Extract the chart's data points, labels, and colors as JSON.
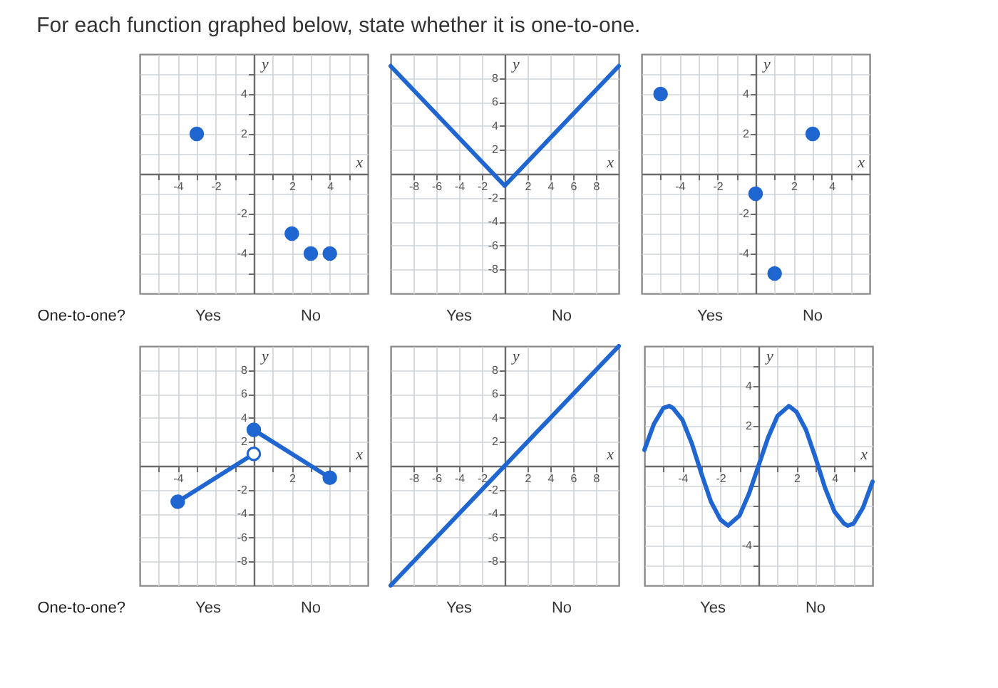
{
  "chart_data": [
    {
      "type": "scatter",
      "title": "For each function graphed below, state whether it is one-to-one.",
      "xlabel": "x",
      "ylabel": "y",
      "x": [
        -3,
        2,
        3,
        4
      ],
      "values": [
        2,
        -3,
        -4,
        -4
      ],
      "color": "#1f66d1",
      "marker": "circle",
      "xlim": [
        -6,
        6
      ],
      "ylim": [
        -6,
        6
      ],
      "xticks": [
        {
          "value": -5,
          "label": null
        },
        -4,
        {
          "value": -3,
          "label": null
        },
        -2,
        {
          "value": -1,
          "label": null
        },
        {
          "value": 1,
          "label": null
        },
        2,
        {
          "value": 3,
          "label": null
        },
        4,
        {
          "value": 5,
          "label": null
        }
      ],
      "yticks": [
        {
          "value": -5,
          "label": null
        },
        -4,
        {
          "value": -3,
          "label": null
        },
        -2,
        {
          "value": -1,
          "label": null
        },
        {
          "value": 1,
          "label": null
        },
        2,
        {
          "value": 3,
          "label": null
        },
        4,
        {
          "value": 5,
          "label": null
        }
      ],
      "grid": true,
      "annotations": [
        "One-to-one?",
        "Yes",
        "No"
      ]
    },
    {
      "type": "line",
      "xlabel": "x",
      "ylabel": "y",
      "x": [
        -10,
        0,
        10
      ],
      "values": [
        9,
        -1,
        9
      ],
      "color": "#1f66d1",
      "xlim": [
        -10,
        10
      ],
      "ylim": [
        -10,
        10
      ],
      "xticks": [
        -8,
        -6,
        -4,
        -2,
        2,
        4,
        6,
        8
      ],
      "yticks": [
        -8,
        -6,
        -4,
        -2,
        2,
        4,
        6,
        8
      ],
      "grid": true,
      "annotations": [
        "Yes",
        "No"
      ]
    },
    {
      "type": "scatter",
      "xlabel": "x",
      "ylabel": "y",
      "x": [
        -5,
        0,
        1,
        3
      ],
      "values": [
        4,
        -1,
        -5,
        2
      ],
      "color": "#1f66d1",
      "marker": "circle",
      "xlim": [
        -6,
        6
      ],
      "ylim": [
        -6,
        6
      ],
      "xticks": [
        {
          "value": -5,
          "label": null
        },
        -4,
        {
          "value": -3,
          "label": null
        },
        -2,
        {
          "value": -1,
          "label": null
        },
        {
          "value": 1,
          "label": null
        },
        2,
        {
          "value": 3,
          "label": null
        },
        4,
        {
          "value": 5,
          "label": null
        }
      ],
      "yticks": [
        {
          "value": -5,
          "label": null
        },
        -4,
        {
          "value": -3,
          "label": null
        },
        -2,
        {
          "value": -1,
          "label": null
        },
        {
          "value": 1,
          "label": null
        },
        2,
        {
          "value": 3,
          "label": null
        },
        4,
        {
          "value": 5,
          "label": null
        }
      ],
      "grid": true,
      "annotations": [
        "Yes",
        "No"
      ]
    },
    {
      "type": "line",
      "xlabel": "x",
      "ylabel": "y",
      "series": [
        {
          "x": [
            -4,
            0
          ],
          "values": [
            -3,
            1
          ],
          "color": "#1f66d1"
        },
        {
          "x": [
            0,
            4
          ],
          "values": [
            3,
            -1
          ],
          "color": "#1f66d1"
        },
        {
          "type": "scatter",
          "marker": "circle",
          "x": [
            -4,
            0,
            4
          ],
          "values": [
            -3,
            3,
            -1
          ],
          "color": "#1f66d1"
        },
        {
          "type": "scatter",
          "marker": "circle",
          "x": [
            0
          ],
          "values": [
            1
          ],
          "color": "#ffffff"
        }
      ],
      "xlim": [
        -6,
        6
      ],
      "ylim": [
        -10,
        10
      ],
      "xticks": [
        {
          "value": -5,
          "label": null
        },
        -4,
        {
          "value": -3,
          "label": null
        },
        {
          "value": -2,
          "label": null
        },
        {
          "value": -1,
          "label": null
        },
        {
          "value": 1,
          "label": null
        },
        2,
        {
          "value": 3,
          "label": null
        },
        {
          "value": 4,
          "label": null
        },
        {
          "value": 5,
          "label": null
        }
      ],
      "yticks": [
        -8,
        -6,
        -4,
        -2,
        2,
        4,
        6,
        8
      ],
      "grid": true,
      "annotations": [
        "One-to-one?",
        "Yes",
        "No"
      ]
    },
    {
      "type": "line",
      "xlabel": "x",
      "ylabel": "y",
      "x": [
        -10,
        10
      ],
      "values": [
        -10,
        10
      ],
      "color": "#1f66d1",
      "xlim": [
        -10,
        10
      ],
      "ylim": [
        -10,
        10
      ],
      "xticks": [
        -8,
        -6,
        -4,
        -2,
        2,
        4,
        6,
        8
      ],
      "yticks": [
        -8,
        -6,
        -4,
        -2,
        2,
        4,
        6,
        8
      ],
      "grid": true,
      "annotations": [
        "Yes",
        "No"
      ]
    },
    {
      "type": "line",
      "xlabel": "x",
      "ylabel": "y",
      "x": [
        -6,
        -5.5,
        -5,
        -4.7,
        -4.5,
        -4,
        -3.5,
        -3,
        -2.5,
        -2,
        -1.6,
        -1,
        -0.5,
        0,
        0.5,
        1,
        1.6,
        2,
        2.5,
        3,
        3.5,
        4,
        4.5,
        4.7,
        5,
        5.5,
        6
      ],
      "values": [
        0.8,
        2.1,
        2.9,
        3,
        2.9,
        2.3,
        1.1,
        -0.4,
        -1.8,
        -2.7,
        -3,
        -2.5,
        -1.4,
        0,
        1.4,
        2.5,
        3,
        2.7,
        1.8,
        0.4,
        -1.1,
        -2.3,
        -2.9,
        -3,
        -2.9,
        -2.1,
        -0.8
      ],
      "color": "#1f66d1",
      "xlim": [
        -6,
        6
      ],
      "ylim": [
        -6,
        6
      ],
      "xticks": [
        {
          "value": -5,
          "label": null
        },
        -4,
        {
          "value": -3,
          "label": null
        },
        -2,
        {
          "value": -1,
          "label": null
        },
        {
          "value": 1,
          "label": null
        },
        2,
        {
          "value": 3,
          "label": null
        },
        4,
        {
          "value": 5,
          "label": null
        }
      ],
      "yticks": [
        {
          "value": -5,
          "label": null
        },
        -4,
        {
          "value": -3,
          "label": null
        },
        {
          "value": -2,
          "label": null
        },
        {
          "value": -1,
          "label": null
        },
        {
          "value": 1,
          "label": null
        },
        2,
        {
          "value": 3,
          "label": null
        },
        4,
        {
          "value": 5,
          "label": null
        }
      ],
      "grid": true,
      "annotations": [
        "Yes",
        "No"
      ]
    }
  ]
}
